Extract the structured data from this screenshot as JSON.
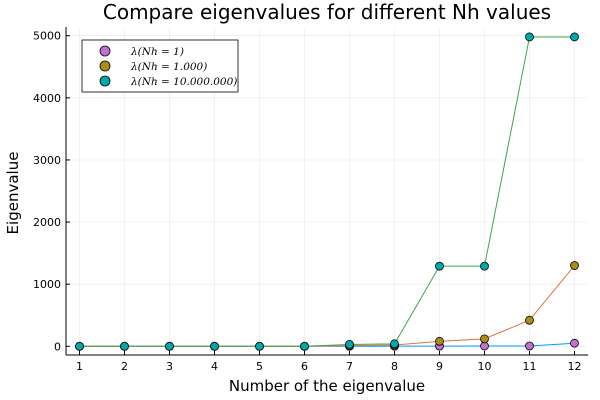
{
  "chart_data": {
    "type": "line",
    "title": "Compare eigenvalues for different Nh values",
    "xlabel": "Number of the eigenvalue",
    "ylabel": "Eigenvalue",
    "x": [
      1,
      2,
      3,
      4,
      5,
      6,
      7,
      8,
      9,
      10,
      11,
      12
    ],
    "xlim": [
      0.7,
      12.3
    ],
    "ylim": [
      -140,
      5140
    ],
    "xticks": [
      "1",
      "2",
      "3",
      "4",
      "5",
      "6",
      "7",
      "8",
      "9",
      "10",
      "11",
      "12"
    ],
    "yticks": [
      0,
      1000,
      2000,
      3000,
      4000,
      5000
    ],
    "ytick_labels": [
      "0",
      "1000",
      "2000",
      "3000",
      "4000",
      "5000"
    ],
    "grid": true,
    "legend_position": "top-left",
    "series": [
      {
        "name": "λ(Nh = 1)",
        "line_color": "#009AFA",
        "marker_color": "#C271D2",
        "values": [
          0,
          0,
          0,
          0,
          0,
          0,
          1,
          2,
          3,
          4,
          5,
          50
        ]
      },
      {
        "name": "λ(Nh = 1.000)",
        "line_color": "#E36F47",
        "marker_color": "#AC8D18",
        "values": [
          0,
          0,
          0,
          0,
          0,
          0,
          10,
          20,
          80,
          120,
          420,
          1300
        ]
      },
      {
        "name": "λ(Nh = 10.000.000)",
        "line_color": "#3EA44E",
        "marker_color": "#00A9AD",
        "values": [
          0,
          0,
          0,
          0,
          0,
          0,
          30,
          40,
          1290,
          1290,
          4980,
          4980
        ]
      }
    ]
  }
}
